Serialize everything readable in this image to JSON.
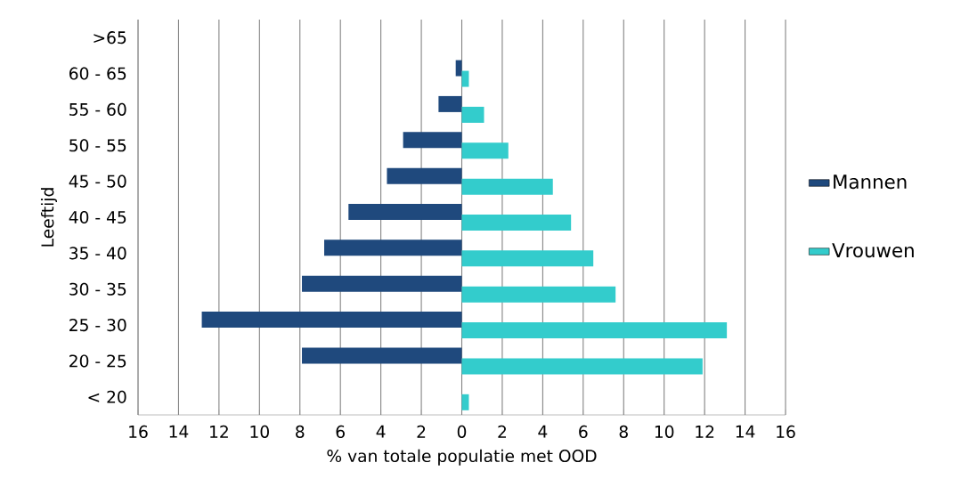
{
  "chart_data": {
    "type": "bar",
    "orientation": "horizontal",
    "xlabel": "% van totale populatie met OOD",
    "ylabel": "Leeftijd",
    "categories": [
      ">65",
      "60 - 65",
      "55 - 60",
      "50 - 55",
      "45 - 50",
      "40 - 45",
      "35 - 40",
      "30 - 35",
      "25 - 30",
      "20 - 25",
      "< 20"
    ],
    "series": [
      {
        "name": "Mannen",
        "color": "#1f497d",
        "values": [
          0,
          -0.3,
          -1.15,
          -2.9,
          -3.7,
          -5.6,
          -6.8,
          -7.9,
          -12.85,
          -7.9,
          0
        ]
      },
      {
        "name": "Vrouwen",
        "color": "#33cccc",
        "values": [
          0,
          0.35,
          1.1,
          2.3,
          4.5,
          5.4,
          6.5,
          7.6,
          13.1,
          11.9,
          0.35
        ]
      }
    ],
    "xlim": [
      -16,
      16
    ],
    "xticks": [
      {
        "value": -16,
        "label": "16"
      },
      {
        "value": -14,
        "label": "14"
      },
      {
        "value": -12,
        "label": "12"
      },
      {
        "value": -10,
        "label": "10"
      },
      {
        "value": -8,
        "label": "8"
      },
      {
        "value": -6,
        "label": "6"
      },
      {
        "value": -4,
        "label": "4"
      },
      {
        "value": -2,
        "label": "2"
      },
      0,
      2,
      4,
      6,
      8,
      10,
      12,
      14,
      16
    ],
    "grid": "x",
    "legend": "right"
  }
}
